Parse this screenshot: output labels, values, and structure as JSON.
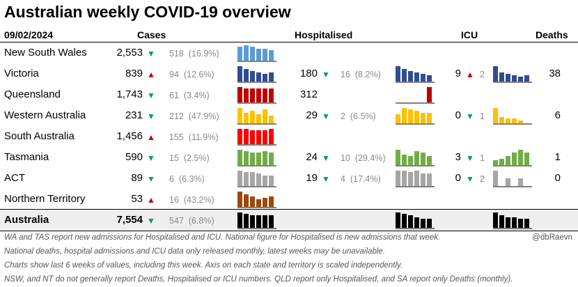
{
  "title": "Australian weekly COVID-19 overview",
  "header": {
    "date": "09/02/2024",
    "cases": "Cases",
    "hospitalised": "Hospitalised",
    "icu": "ICU",
    "deaths": "Deaths"
  },
  "colors": {
    "up": "#c00000",
    "down": "#00a050",
    "change_text": "#888888",
    "total_row_bg": "#eeeeee"
  },
  "rows": [
    {
      "state": "New South Wales",
      "color": "#5b9bd5",
      "cases": "2,553",
      "cases_dir": "down",
      "cases_change": "518",
      "cases_pct": "(16.9%)",
      "cases_spark": [
        8,
        9,
        8,
        7,
        7,
        6
      ]
    },
    {
      "state": "Victoria",
      "color": "#2f4d8f",
      "cases": "839",
      "cases_dir": "up",
      "cases_change": "94",
      "cases_pct": "(12.6%)",
      "cases_spark": [
        10,
        8,
        7,
        6,
        5,
        6
      ],
      "hosp": "180",
      "hosp_dir": "down",
      "hosp_change": "16",
      "hosp_pct": "(8.2%)",
      "hosp_spark": [
        10,
        8,
        7,
        6,
        5,
        4
      ],
      "icu": "9",
      "icu_dir": "up",
      "icu_change": "2",
      "icu_spark": [
        10,
        6,
        5,
        4,
        3,
        4
      ],
      "deaths": "38"
    },
    {
      "state": "Queensland",
      "color": "#c00000",
      "cases": "1,743",
      "cases_dir": "down",
      "cases_change": "61",
      "cases_pct": "(3.4%)",
      "cases_spark": [
        9,
        8,
        8,
        8,
        8,
        8
      ],
      "hosp": "312",
      "hosp_spark": [
        0,
        0,
        0,
        0,
        0,
        10
      ]
    },
    {
      "state": "Western Australia",
      "color": "#ffc000",
      "cases": "231",
      "cases_dir": "down",
      "cases_change": "212",
      "cases_pct": "(47.9%)",
      "cases_spark": [
        10,
        7,
        8,
        6,
        9,
        5
      ],
      "hosp": "29",
      "hosp_dir": "down",
      "hosp_change": "2",
      "hosp_pct": "(6.5%)",
      "hosp_spark": [
        6,
        10,
        9,
        8,
        7,
        7
      ],
      "icu": "0",
      "icu_dir": "down",
      "icu_change": "1",
      "icu_spark": [
        10,
        4,
        3,
        3,
        2,
        0
      ],
      "deaths": "6"
    },
    {
      "state": "South Australia",
      "color": "#ff0000",
      "cases": "1,456",
      "cases_dir": "up",
      "cases_change": "155",
      "cases_pct": "(11.9%)",
      "cases_spark": [
        9,
        9,
        8,
        8,
        8,
        9
      ]
    },
    {
      "state": "Tasmania",
      "color": "#70ad47",
      "cases": "590",
      "cases_dir": "down",
      "cases_change": "15",
      "cases_pct": "(2.5%)",
      "cases_spark": [
        10,
        9,
        8,
        8,
        9,
        8
      ],
      "hosp": "24",
      "hosp_dir": "down",
      "hosp_change": "10",
      "hosp_pct": "(29.4%)",
      "hosp_spark": [
        10,
        7,
        6,
        9,
        8,
        6
      ],
      "icu": "3",
      "icu_dir": "down",
      "icu_change": "1",
      "icu_spark": [
        3,
        4,
        6,
        8,
        10,
        8
      ],
      "deaths": "1"
    },
    {
      "state": "ACT",
      "color": "#a6a6a6",
      "cases": "89",
      "cases_dir": "down",
      "cases_change": "6",
      "cases_pct": "(6.3%)",
      "cases_spark": [
        10,
        9,
        9,
        8,
        7,
        7
      ],
      "hosp": "19",
      "hosp_dir": "down",
      "hosp_change": "4",
      "hosp_pct": "(17.4%)",
      "hosp_spark": [
        10,
        10,
        9,
        10,
        8,
        8
      ],
      "icu": "0",
      "icu_dir": "down",
      "icu_change": "2",
      "icu_spark": [
        10,
        0,
        5,
        0,
        5,
        0
      ],
      "deaths": "0"
    },
    {
      "state": "Northern Territory",
      "color": "#9e480e",
      "cases": "53",
      "cases_dir": "up",
      "cases_change": "16",
      "cases_pct": "(43.2%)",
      "cases_spark": [
        10,
        8,
        7,
        5,
        6,
        7
      ]
    }
  ],
  "total": {
    "state": "Australia",
    "color": "#000000",
    "cases": "7,554",
    "cases_dir": "down",
    "cases_change": "547",
    "cases_pct": "(6.8%)",
    "cases_spark": [
      10,
      9,
      8,
      8,
      8,
      8
    ],
    "hosp_spark": [
      10,
      9,
      8,
      7,
      6,
      6
    ],
    "icu_spark": [
      10,
      8,
      7,
      7,
      6,
      6
    ]
  },
  "footnotes": [
    "WA and TAS report new admissions for Hospitalised and ICU. National figure for Hospitalised is new admissions that week.",
    "National deaths, hospital admissions and ICU data only released monthly, latest weeks may be unavailable.",
    "Charts show last 6 weeks of values, including this week. Axis on each state and territory is scaled independently.",
    "NSW, and NT do not generally report Deaths, Hospitalised or ICU numbers. QLD report only Hospitalised, and SA report only Deaths (monthly)."
  ],
  "credit": "@dbRaevn"
}
